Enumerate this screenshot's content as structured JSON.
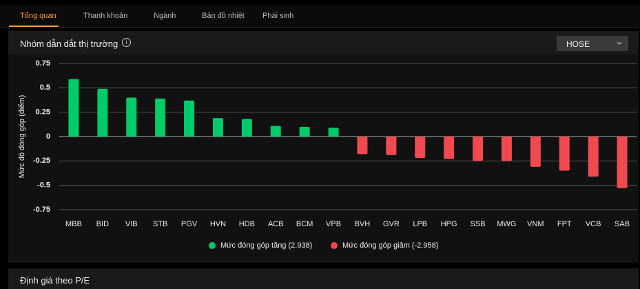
{
  "tabs": [
    "Tổng quan",
    "Thanh khoản",
    "Ngành",
    "Bản đồ nhiệt",
    "Phái sinh"
  ],
  "panel": {
    "title": "Nhóm dẫn dắt thị trường",
    "exchange": "HOSE"
  },
  "next_panel": {
    "title": "Định giá theo P/E"
  },
  "chart_data": {
    "type": "bar",
    "y_label": "Mức độ đóng góp (điểm)",
    "categories": [
      "MBB",
      "BID",
      "VIB",
      "STB",
      "PGV",
      "HVN",
      "HDB",
      "ACB",
      "BCM",
      "VPB",
      "BVH",
      "GVR",
      "LPB",
      "HPG",
      "SSB",
      "MWG",
      "VNM",
      "FPT",
      "VCB",
      "SAB"
    ],
    "series": [
      {
        "name": "Mức đóng góp tăng (2.938)",
        "color": "#00cc6a",
        "values": [
          0.59,
          0.49,
          0.4,
          0.39,
          0.37,
          0.19,
          0.18,
          0.11,
          0.1,
          0.09,
          null,
          null,
          null,
          null,
          null,
          null,
          null,
          null,
          null,
          null
        ]
      },
      {
        "name": "Mức đóng góp giảm (-2.958)",
        "color": "#f0494f",
        "values": [
          null,
          null,
          null,
          null,
          null,
          null,
          null,
          null,
          null,
          null,
          -0.18,
          -0.19,
          -0.22,
          -0.23,
          -0.25,
          -0.25,
          -0.31,
          -0.35,
          -0.41,
          -0.53
        ]
      }
    ],
    "ylim": [
      -0.75,
      0.75
    ],
    "yticks": [
      0.75,
      0.5,
      0.25,
      0,
      -0.25,
      -0.5,
      -0.75
    ],
    "grid": true
  }
}
